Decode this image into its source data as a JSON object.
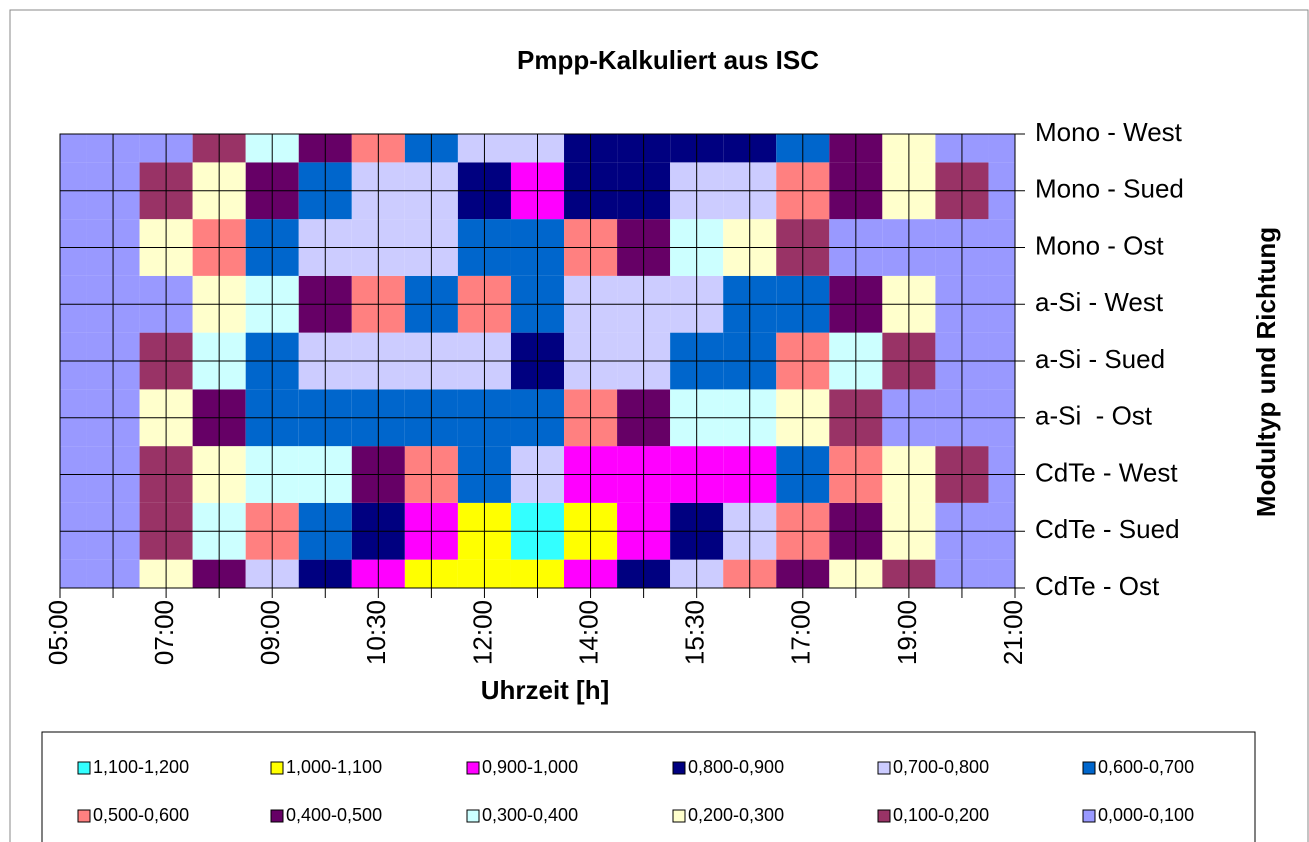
{
  "chart_data": {
    "type": "contour",
    "title": "Pmpp-Kalkuliert aus ISC",
    "x_label": "Uhrzeit [h]",
    "y_label": "Modultyp und Richtung",
    "categories": [
      "05:00",
      null,
      "07:00",
      null,
      "09:00",
      null,
      "10:30",
      null,
      "12:00",
      null,
      "14:00",
      null,
      "15:30",
      null,
      "17:00",
      null,
      "19:00",
      null,
      "21:00"
    ],
    "rows": [
      "CdTe - Ost",
      "CdTe - Sued",
      "CdTe - West",
      "a-Si  - Ost",
      "a-Si - Sued",
      "a-Si - West",
      "Mono - Ost",
      "Mono - Sued",
      "Mono - West"
    ],
    "z": [
      [
        0,
        0,
        0.2,
        0.45,
        0.7,
        0.85,
        0.95,
        1.02,
        1.05,
        1.0,
        0.9,
        0.8,
        0.7,
        0.55,
        0.4,
        0.25,
        0.1,
        0.02,
        0
      ],
      [
        0,
        0.03,
        0.15,
        0.3,
        0.5,
        0.65,
        0.85,
        0.95,
        1.05,
        1.12,
        1.05,
        0.95,
        0.85,
        0.7,
        0.55,
        0.4,
        0.2,
        0.05,
        0
      ],
      [
        0,
        0.05,
        0.12,
        0.2,
        0.3,
        0.38,
        0.45,
        0.5,
        0.6,
        0.75,
        0.9,
        0.95,
        0.95,
        0.9,
        0.65,
        0.5,
        0.25,
        0.1,
        0
      ],
      [
        0,
        0.05,
        0.2,
        0.45,
        0.6,
        0.65,
        0.65,
        0.62,
        0.6,
        0.6,
        0.5,
        0.45,
        0.35,
        0.3,
        0.25,
        0.15,
        0.08,
        0,
        0
      ],
      [
        0,
        0.05,
        0.15,
        0.35,
        0.6,
        0.7,
        0.72,
        0.75,
        0.78,
        0.82,
        0.75,
        0.72,
        0.65,
        0.6,
        0.5,
        0.3,
        0.15,
        0.05,
        0
      ],
      [
        0,
        0,
        0.08,
        0.2,
        0.3,
        0.45,
        0.55,
        0.6,
        0.55,
        0.65,
        0.7,
        0.72,
        0.7,
        0.65,
        0.6,
        0.45,
        0.25,
        0.05,
        0
      ],
      [
        0,
        0,
        0.25,
        0.5,
        0.65,
        0.72,
        0.75,
        0.72,
        0.6,
        0.6,
        0.55,
        0.45,
        0.35,
        0.25,
        0.15,
        0.08,
        0.03,
        0,
        0
      ],
      [
        0,
        0,
        0.12,
        0.25,
        0.45,
        0.6,
        0.7,
        0.78,
        0.85,
        0.92,
        0.88,
        0.8,
        0.75,
        0.7,
        0.55,
        0.4,
        0.25,
        0.1,
        0
      ],
      [
        0,
        0,
        0.05,
        0.15,
        0.3,
        0.45,
        0.55,
        0.65,
        0.72,
        0.78,
        0.82,
        0.85,
        0.85,
        0.8,
        0.6,
        0.45,
        0.25,
        0.08,
        0
      ]
    ],
    "bands": [
      {
        "label": "1,100-1,200",
        "from": 1.1,
        "to": 1.2,
        "color": "#33ffff"
      },
      {
        "label": "1,000-1,100",
        "from": 1.0,
        "to": 1.1,
        "color": "#ffff00"
      },
      {
        "label": "0,900-1,000",
        "from": 0.9,
        "to": 1.0,
        "color": "#ff00ff"
      },
      {
        "label": "0,800-0,900",
        "from": 0.8,
        "to": 0.9,
        "color": "#000080"
      },
      {
        "label": "0,700-0,800",
        "from": 0.7,
        "to": 0.8,
        "color": "#ccccff"
      },
      {
        "label": "0,600-0,700",
        "from": 0.6,
        "to": 0.7,
        "color": "#0066cc"
      },
      {
        "label": "0,500-0,600",
        "from": 0.5,
        "to": 0.6,
        "color": "#ff8080"
      },
      {
        "label": "0,400-0,500",
        "from": 0.4,
        "to": 0.5,
        "color": "#660066"
      },
      {
        "label": "0,300-0,400",
        "from": 0.3,
        "to": 0.4,
        "color": "#ccffff"
      },
      {
        "label": "0,200-0,300",
        "from": 0.2,
        "to": 0.3,
        "color": "#ffffcc"
      },
      {
        "label": "0,100-0,200",
        "from": 0.1,
        "to": 0.2,
        "color": "#993366"
      },
      {
        "label": "0,000-0,100",
        "from": 0.0,
        "to": 0.1,
        "color": "#9999ff"
      }
    ],
    "grid": true
  }
}
